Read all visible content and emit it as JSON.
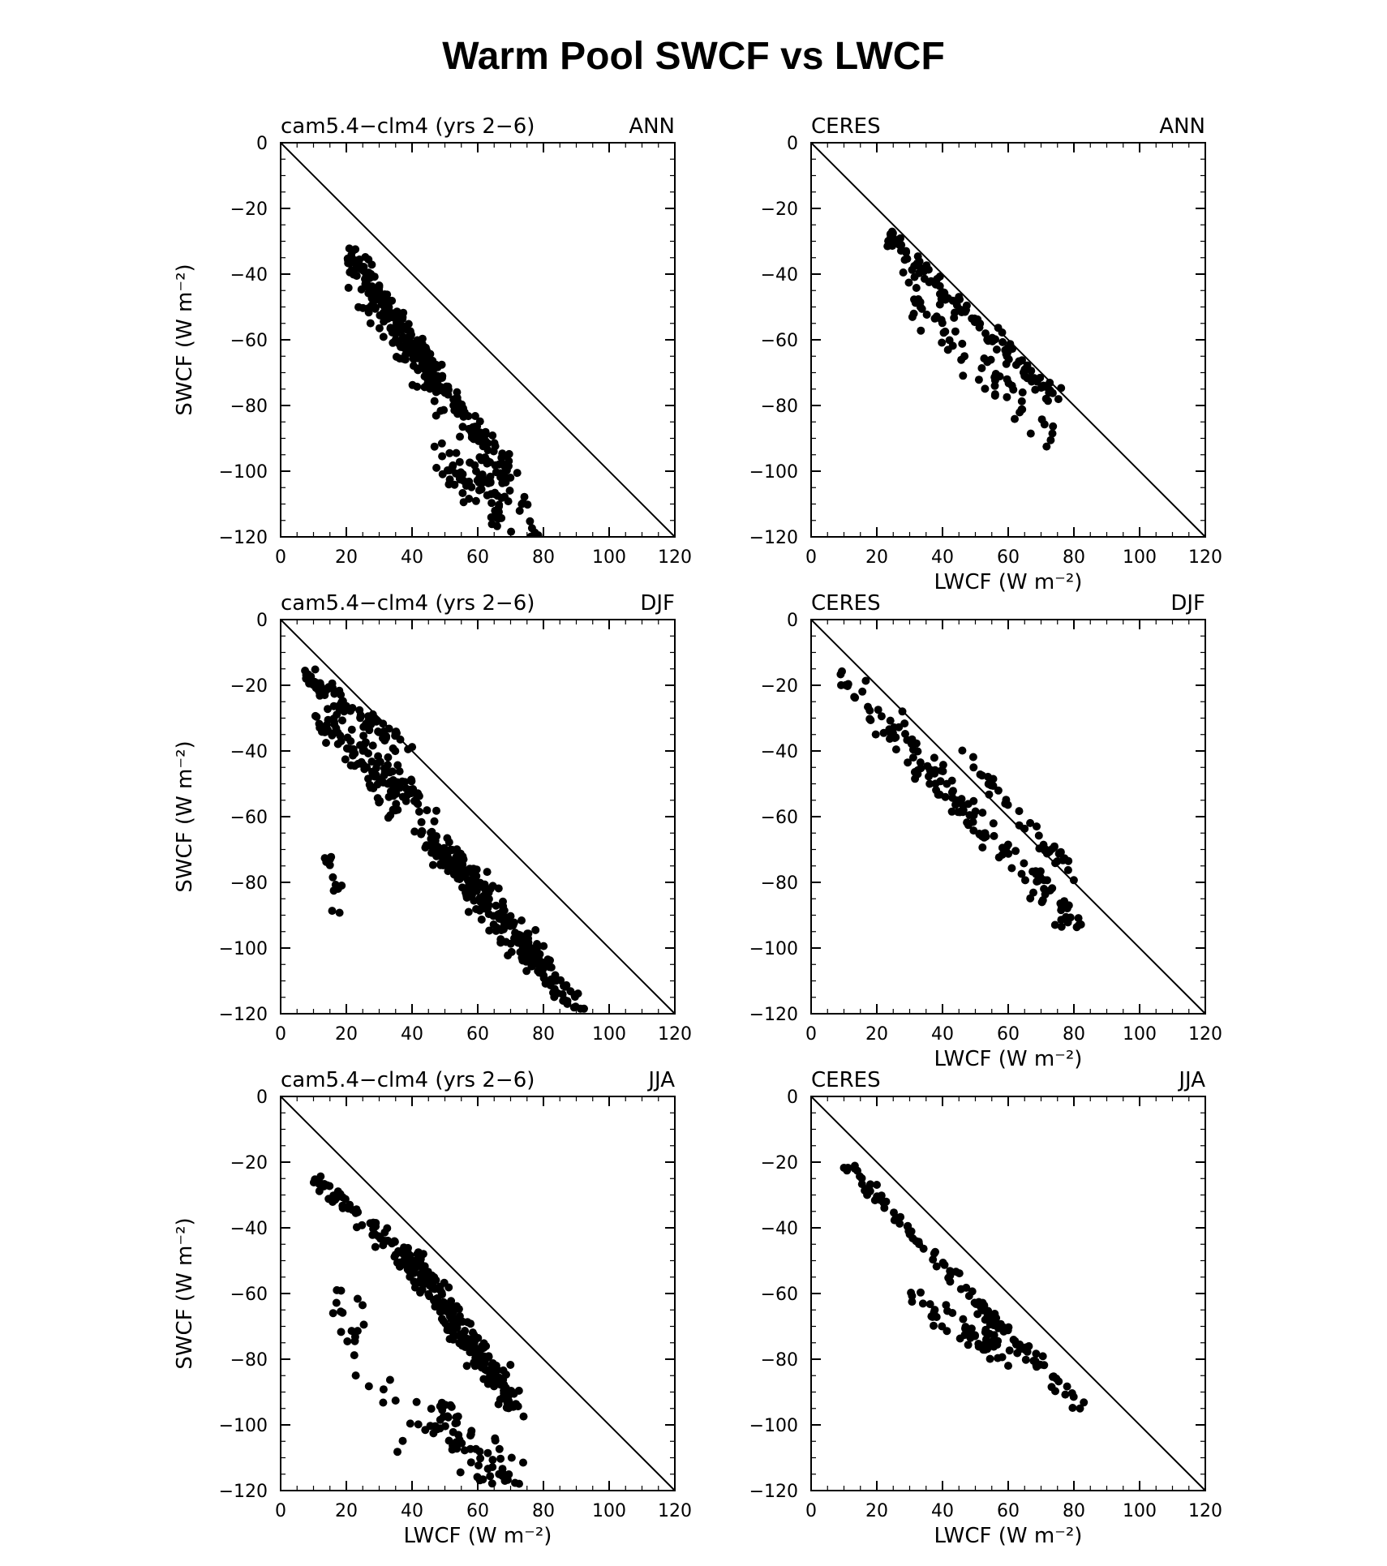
{
  "figure": {
    "title": "Warm Pool SWCF vs LWCF"
  },
  "chart_data": [
    {
      "type": "scatter",
      "title_left": "cam5.4−clm4 (yrs 2−6)",
      "title_right": "ANN",
      "xlabel": "",
      "ylabel": "SWCF (W m⁻²)",
      "xlim": [
        0,
        120
      ],
      "ylim": [
        -120,
        0
      ],
      "xticks": [
        "0",
        "20",
        "40",
        "60",
        "80",
        "100",
        "120"
      ],
      "yticks": [
        "0",
        "−20",
        "−40",
        "−60",
        "−80",
        "−100",
        "−120"
      ],
      "reference_line": "1:1 (SWCF = −LWCF)",
      "clusters": [
        {
          "x0": 20,
          "y0": -33,
          "x1": 70,
          "y1": -103,
          "jitter_x": 5,
          "jitter_y": 5,
          "n": 260
        },
        {
          "x0": 25,
          "y0": -45,
          "x1": 50,
          "y1": -80,
          "jitter_x": 6,
          "jitter_y": 10,
          "n": 70
        },
        {
          "x0": 50,
          "y0": -95,
          "x1": 77,
          "y1": -118,
          "jitter_x": 10,
          "jitter_y": 8,
          "n": 80
        }
      ]
    },
    {
      "type": "scatter",
      "title_left": "CERES",
      "title_right": "ANN",
      "xlabel": "LWCF (W m⁻²)",
      "ylabel": "",
      "xlim": [
        0,
        120
      ],
      "ylim": [
        -120,
        0
      ],
      "xticks": [
        "0",
        "20",
        "40",
        "60",
        "80",
        "100",
        "120"
      ],
      "yticks": [
        "0",
        "−20",
        "−40",
        "−60",
        "−80",
        "−100",
        "−120"
      ],
      "reference_line": "1:1 (SWCF = −LWCF)",
      "clusters": [
        {
          "x0": 22,
          "y0": -28,
          "x1": 75,
          "y1": -78,
          "jitter_x": 3,
          "jitter_y": 5,
          "n": 120
        },
        {
          "x0": 30,
          "y0": -45,
          "x1": 72,
          "y1": -88,
          "jitter_x": 6,
          "jitter_y": 8,
          "n": 60
        }
      ]
    },
    {
      "type": "scatter",
      "title_left": "cam5.4−clm4 (yrs 2−6)",
      "title_right": "DJF",
      "xlabel": "",
      "ylabel": "SWCF (W m⁻²)",
      "xlim": [
        0,
        120
      ],
      "ylim": [
        -120,
        0
      ],
      "xticks": [
        "0",
        "20",
        "40",
        "60",
        "80",
        "100",
        "120"
      ],
      "yticks": [
        "0",
        "−20",
        "−40",
        "−60",
        "−80",
        "−100",
        "−120"
      ],
      "reference_line": "1:1 (SWCF = −LWCF)",
      "clusters": [
        {
          "x0": 7,
          "y0": -17,
          "x1": 40,
          "y1": -40,
          "jitter_x": 4,
          "jitter_y": 4,
          "n": 80
        },
        {
          "x0": 12,
          "y0": -30,
          "x1": 45,
          "y1": -62,
          "jitter_x": 8,
          "jitter_y": 10,
          "n": 130
        },
        {
          "x0": 45,
          "y0": -65,
          "x1": 90,
          "y1": -118,
          "jitter_x": 7,
          "jitter_y": 7,
          "n": 260
        },
        {
          "x0": 14,
          "y0": -70,
          "x1": 18,
          "y1": -90,
          "jitter_x": 3,
          "jitter_y": 4,
          "n": 12
        }
      ]
    },
    {
      "type": "scatter",
      "title_left": "CERES",
      "title_right": "DJF",
      "xlabel": "LWCF (W m⁻²)",
      "ylabel": "",
      "xlim": [
        0,
        120
      ],
      "ylim": [
        -120,
        0
      ],
      "xticks": [
        "0",
        "20",
        "40",
        "60",
        "80",
        "100",
        "120"
      ],
      "yticks": [
        "0",
        "−20",
        "−40",
        "−60",
        "−80",
        "−100",
        "−120"
      ],
      "reference_line": "1:1 (SWCF = −LWCF)",
      "clusters": [
        {
          "x0": 10,
          "y0": -18,
          "x1": 82,
          "y1": -95,
          "jitter_x": 5,
          "jitter_y": 8,
          "n": 150
        },
        {
          "x0": 45,
          "y0": -40,
          "x1": 83,
          "y1": -80,
          "jitter_x": 4,
          "jitter_y": 4,
          "n": 40
        }
      ]
    },
    {
      "type": "scatter",
      "title_left": "cam5.4−clm4 (yrs 2−6)",
      "title_right": "JJA",
      "xlabel": "LWCF (W m⁻²)",
      "ylabel": "SWCF (W m⁻²)",
      "xlim": [
        0,
        120
      ],
      "ylim": [
        -120,
        0
      ],
      "xticks": [
        "0",
        "20",
        "40",
        "60",
        "80",
        "100",
        "120"
      ],
      "yticks": [
        "0",
        "−20",
        "−40",
        "−60",
        "−80",
        "−100",
        "−120"
      ],
      "reference_line": "1:1 (SWCF = −LWCF)",
      "clusters": [
        {
          "x0": 10,
          "y0": -25,
          "x1": 40,
          "y1": -50,
          "jitter_x": 4,
          "jitter_y": 4,
          "n": 60
        },
        {
          "x0": 38,
          "y0": -48,
          "x1": 72,
          "y1": -95,
          "jitter_x": 5,
          "jitter_y": 6,
          "n": 260
        },
        {
          "x0": 45,
          "y0": -95,
          "x1": 70,
          "y1": -118,
          "jitter_x": 10,
          "jitter_y": 8,
          "n": 70
        },
        {
          "x0": 15,
          "y0": -55,
          "x1": 38,
          "y1": -105,
          "jitter_x": 6,
          "jitter_y": 10,
          "n": 25
        }
      ]
    },
    {
      "type": "scatter",
      "title_left": "CERES",
      "title_right": "JJA",
      "xlabel": "LWCF (W m⁻²)",
      "ylabel": "",
      "xlim": [
        0,
        120
      ],
      "ylim": [
        -120,
        0
      ],
      "xticks": [
        "0",
        "20",
        "40",
        "60",
        "80",
        "100",
        "120"
      ],
      "yticks": [
        "0",
        "−20",
        "−40",
        "−60",
        "−80",
        "−100",
        "−120"
      ],
      "reference_line": "1:1 (SWCF = −LWCF)",
      "clusters": [
        {
          "x0": 10,
          "y0": -20,
          "x1": 82,
          "y1": -95,
          "jitter_x": 3,
          "jitter_y": 4,
          "n": 120
        },
        {
          "x0": 30,
          "y0": -60,
          "x1": 60,
          "y1": -80,
          "jitter_x": 6,
          "jitter_y": 6,
          "n": 50
        }
      ]
    }
  ]
}
